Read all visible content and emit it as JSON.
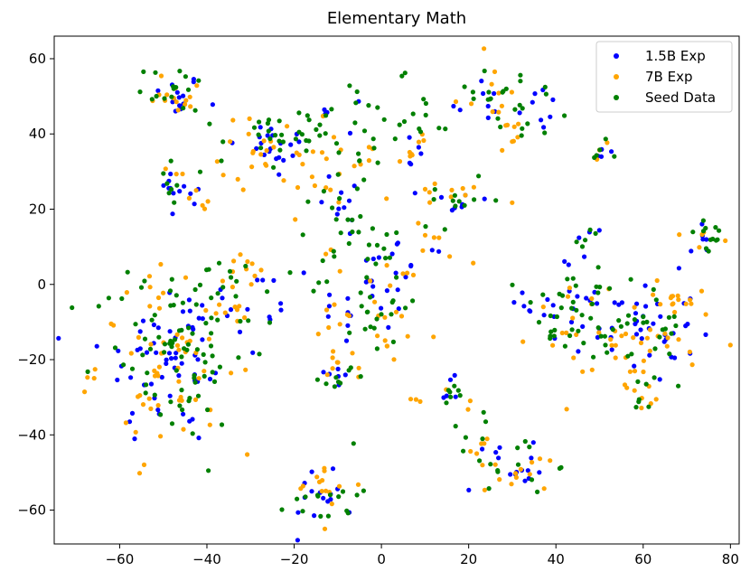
{
  "chart_data": {
    "type": "scatter",
    "title": "Elementary Math",
    "xlabel": "",
    "ylabel": "",
    "xlim": [
      -75,
      82
    ],
    "ylim": [
      -69,
      66
    ],
    "xticks": [
      -60,
      -40,
      -20,
      0,
      20,
      40,
      60,
      80
    ],
    "yticks": [
      -60,
      -40,
      -20,
      0,
      20,
      40,
      60
    ],
    "grid": false,
    "legend_position": "top-right",
    "series": [
      {
        "name": "1.5B Exp",
        "color": "#0000ff",
        "clusters": [
          {
            "cx": -47,
            "cy": 50,
            "sx": 3,
            "sy": 3,
            "n": 14
          },
          {
            "cx": -25,
            "cy": 36,
            "sx": 5,
            "sy": 4,
            "n": 20
          },
          {
            "cx": -47,
            "cy": 28,
            "sx": 2,
            "sy": 2,
            "n": 6
          },
          {
            "cx": -45,
            "cy": 21,
            "sx": 2,
            "sy": 3,
            "n": 6
          },
          {
            "cx": -8,
            "cy": 45,
            "sx": 4,
            "sy": 3,
            "n": 6
          },
          {
            "cx": -8,
            "cy": 22,
            "sx": 3,
            "sy": 5,
            "n": 10
          },
          {
            "cx": 8,
            "cy": 35,
            "sx": 2,
            "sy": 3,
            "n": 5
          },
          {
            "cx": 22,
            "cy": 49,
            "sx": 3,
            "sy": 4,
            "n": 8
          },
          {
            "cx": 35,
            "cy": 47,
            "sx": 3,
            "sy": 3,
            "n": 8
          },
          {
            "cx": 18,
            "cy": 22,
            "sx": 4,
            "sy": 2,
            "n": 8
          },
          {
            "cx": 50,
            "cy": 35,
            "sx": 1.5,
            "sy": 1.5,
            "n": 4
          },
          {
            "cx": -48,
            "cy": -20,
            "sx": 8,
            "sy": 12,
            "n": 60
          },
          {
            "cx": -30,
            "cy": -6,
            "sx": 5,
            "sy": 5,
            "n": 12
          },
          {
            "cx": -10,
            "cy": -24,
            "sx": 2,
            "sy": 2,
            "n": 6
          },
          {
            "cx": -13,
            "cy": -55,
            "sx": 4,
            "sy": 4,
            "n": 15
          },
          {
            "cx": -3,
            "cy": -5,
            "sx": 6,
            "sy": 8,
            "n": 25
          },
          {
            "cx": 8,
            "cy": 10,
            "sx": 3,
            "sy": 3,
            "n": 6
          },
          {
            "cx": 15,
            "cy": -29,
            "sx": 2,
            "sy": 2,
            "n": 5
          },
          {
            "cx": 33,
            "cy": -49,
            "sx": 3,
            "sy": 3,
            "n": 10
          },
          {
            "cx": 22,
            "cy": -45,
            "sx": 3,
            "sy": 5,
            "n": 5
          },
          {
            "cx": 60,
            "cy": -12,
            "sx": 6,
            "sy": 7,
            "n": 40
          },
          {
            "cx": 43,
            "cy": -5,
            "sx": 5,
            "sy": 6,
            "n": 20
          },
          {
            "cx": 73,
            "cy": 12,
            "sx": 2,
            "sy": 2,
            "n": 6
          },
          {
            "cx": 48,
            "cy": 12,
            "sx": 2,
            "sy": 2,
            "n": 4
          }
        ]
      },
      {
        "name": "7B Exp",
        "color": "#ffa500",
        "clusters": [
          {
            "cx": -47,
            "cy": 51,
            "sx": 4,
            "sy": 3,
            "n": 14
          },
          {
            "cx": -25,
            "cy": 35,
            "sx": 6,
            "sy": 5,
            "n": 28
          },
          {
            "cx": -45,
            "cy": 25,
            "sx": 3,
            "sy": 4,
            "n": 8
          },
          {
            "cx": -10,
            "cy": 28,
            "sx": 6,
            "sy": 6,
            "n": 15
          },
          {
            "cx": 8,
            "cy": 35,
            "sx": 2,
            "sy": 3,
            "n": 8
          },
          {
            "cx": 24,
            "cy": 50,
            "sx": 4,
            "sy": 5,
            "n": 12
          },
          {
            "cx": 30,
            "cy": 40,
            "sx": 2,
            "sy": 2,
            "n": 6
          },
          {
            "cx": 16,
            "cy": 24,
            "sx": 5,
            "sy": 2,
            "n": 10
          },
          {
            "cx": 50,
            "cy": 35,
            "sx": 1.5,
            "sy": 1.5,
            "n": 4
          },
          {
            "cx": -47,
            "cy": -20,
            "sx": 9,
            "sy": 12,
            "n": 70
          },
          {
            "cx": -32,
            "cy": 0,
            "sx": 4,
            "sy": 4,
            "n": 10
          },
          {
            "cx": -8,
            "cy": -22,
            "sx": 3,
            "sy": 3,
            "n": 8
          },
          {
            "cx": -13,
            "cy": -54,
            "sx": 4,
            "sy": 4,
            "n": 14
          },
          {
            "cx": 0,
            "cy": -5,
            "sx": 7,
            "sy": 8,
            "n": 30
          },
          {
            "cx": 10,
            "cy": 10,
            "sx": 3,
            "sy": 3,
            "n": 6
          },
          {
            "cx": 12,
            "cy": -32,
            "sx": 4,
            "sy": 2,
            "n": 6
          },
          {
            "cx": 32,
            "cy": -49,
            "sx": 4,
            "sy": 3,
            "n": 12
          },
          {
            "cx": 20,
            "cy": -42,
            "sx": 3,
            "sy": 5,
            "n": 6
          },
          {
            "cx": 62,
            "cy": -15,
            "sx": 6,
            "sy": 8,
            "n": 35
          },
          {
            "cx": 70,
            "cy": -5,
            "sx": 3,
            "sy": 3,
            "n": 10
          },
          {
            "cx": 45,
            "cy": -10,
            "sx": 5,
            "sy": 6,
            "n": 18
          },
          {
            "cx": 73,
            "cy": 12,
            "sx": 2,
            "sy": 2,
            "n": 5
          },
          {
            "cx": 60,
            "cy": -30,
            "sx": 2,
            "sy": 2,
            "n": 4
          }
        ]
      },
      {
        "name": "Seed Data",
        "color": "#008000",
        "clusters": [
          {
            "cx": -47,
            "cy": 52,
            "sx": 4,
            "sy": 3,
            "n": 16
          },
          {
            "cx": -25,
            "cy": 37,
            "sx": 6,
            "sy": 5,
            "n": 30
          },
          {
            "cx": -47,
            "cy": 27,
            "sx": 3,
            "sy": 4,
            "n": 8
          },
          {
            "cx": -8,
            "cy": 40,
            "sx": 8,
            "sy": 8,
            "n": 20
          },
          {
            "cx": -8,
            "cy": 22,
            "sx": 4,
            "sy": 5,
            "n": 12
          },
          {
            "cx": 8,
            "cy": 45,
            "sx": 5,
            "sy": 6,
            "n": 12
          },
          {
            "cx": 23,
            "cy": 51,
            "sx": 4,
            "sy": 5,
            "n": 14
          },
          {
            "cx": 36,
            "cy": 46,
            "sx": 4,
            "sy": 4,
            "n": 12
          },
          {
            "cx": 18,
            "cy": 22,
            "sx": 5,
            "sy": 3,
            "n": 12
          },
          {
            "cx": 50,
            "cy": 35,
            "sx": 1.5,
            "sy": 1.5,
            "n": 5
          },
          {
            "cx": -48,
            "cy": -18,
            "sx": 9,
            "sy": 12,
            "n": 80
          },
          {
            "cx": -32,
            "cy": 0,
            "sx": 5,
            "sy": 5,
            "n": 14
          },
          {
            "cx": -10,
            "cy": -24,
            "sx": 3,
            "sy": 3,
            "n": 8
          },
          {
            "cx": -13,
            "cy": -56,
            "sx": 4,
            "sy": 4,
            "n": 16
          },
          {
            "cx": -2,
            "cy": 0,
            "sx": 7,
            "sy": 10,
            "n": 40
          },
          {
            "cx": 15,
            "cy": -29,
            "sx": 2,
            "sy": 2,
            "n": 6
          },
          {
            "cx": 32,
            "cy": -48,
            "sx": 4,
            "sy": 4,
            "n": 12
          },
          {
            "cx": 20,
            "cy": -40,
            "sx": 4,
            "sy": 6,
            "n": 8
          },
          {
            "cx": 58,
            "cy": -12,
            "sx": 7,
            "sy": 8,
            "n": 40
          },
          {
            "cx": 42,
            "cy": -8,
            "sx": 6,
            "sy": 7,
            "n": 25
          },
          {
            "cx": 75,
            "cy": 12,
            "sx": 2.5,
            "sy": 2.5,
            "n": 12
          },
          {
            "cx": 48,
            "cy": 12,
            "sx": 2,
            "sy": 2,
            "n": 5
          },
          {
            "cx": 60,
            "cy": -30,
            "sx": 2,
            "sy": 2,
            "n": 5
          }
        ]
      }
    ]
  }
}
